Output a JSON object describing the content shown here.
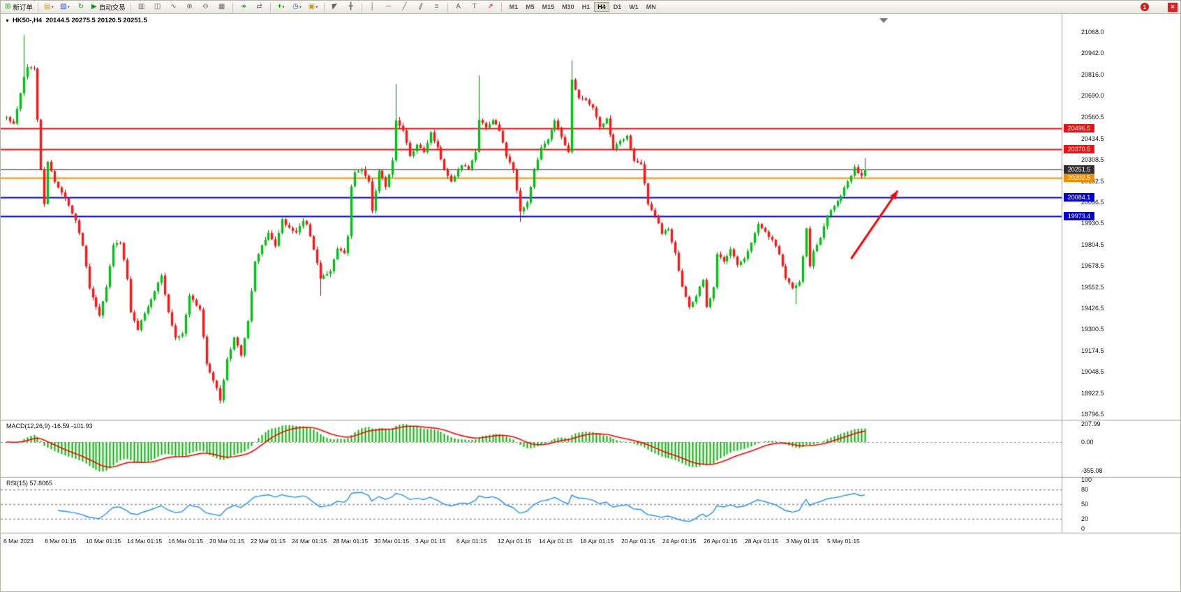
{
  "window": {
    "notification_count": "1",
    "close_glyph": "×"
  },
  "toolbar": {
    "new_order_label": "新订单",
    "auto_trading_label": "自动交易",
    "timeframes": [
      "M1",
      "M5",
      "M15",
      "M30",
      "H1",
      "H4",
      "D1",
      "W1",
      "MN"
    ],
    "active_timeframe": "H4"
  },
  "icons": {
    "new_order": "⊞",
    "terminal": "▤",
    "navigator": "▧",
    "refresh": "↻",
    "play": "▶",
    "chart_bars": "▥",
    "chart_candles": "◫",
    "chart_line": "∿",
    "zoom_in": "⊕",
    "zoom_out": "⊖",
    "tile_windows": "▦",
    "auto_scroll": "↠",
    "chart_shift": "⇄",
    "indicators": "+",
    "periods": "◷",
    "templates": "▣",
    "cursor": "◤",
    "crosshair": "╋",
    "vertical_line": "│",
    "horizontal_line": "─",
    "trendline": "╱",
    "channel": "∥",
    "fibonacci": "≡",
    "text": "A",
    "text_label": "T",
    "arrows_tool": "↗",
    "dropdown": "▾",
    "collapse": "▼"
  },
  "chart": {
    "symbol_period": "HK50-,H4",
    "ohlc": "20144.5 20275.5 20120.5 20251.5"
  },
  "indicators": {
    "macd_label": "MACD(12,26,9) -16.59 -101.93",
    "rsi_label": "RSI(15) 57.8065"
  },
  "chart_data": {
    "type": "candlestick",
    "symbol": "HK50-",
    "period": "H4",
    "open": "20144.5",
    "high": "20275.5",
    "low": "20120.5",
    "close": "20251.5",
    "candle_count": 250,
    "close_path_anchors": [
      [
        0,
        20560
      ],
      [
        2,
        20520
      ],
      [
        4,
        20700
      ],
      [
        5,
        20800
      ],
      [
        6,
        20860
      ],
      [
        8,
        20850
      ],
      [
        9,
        20550
      ],
      [
        10,
        20250
      ],
      [
        11,
        20050
      ],
      [
        12,
        20300
      ],
      [
        14,
        20180
      ],
      [
        17,
        20080
      ],
      [
        20,
        19950
      ],
      [
        22,
        19800
      ],
      [
        24,
        19550
      ],
      [
        27,
        19380
      ],
      [
        29,
        19550
      ],
      [
        31,
        19800
      ],
      [
        33,
        19820
      ],
      [
        35,
        19600
      ],
      [
        36,
        19400
      ],
      [
        38,
        19300
      ],
      [
        40,
        19400
      ],
      [
        42,
        19480
      ],
      [
        45,
        19620
      ],
      [
        47,
        19400
      ],
      [
        49,
        19250
      ],
      [
        51,
        19280
      ],
      [
        53,
        19500
      ],
      [
        56,
        19420
      ],
      [
        58,
        19100
      ],
      [
        61,
        18950
      ],
      [
        62,
        18880
      ],
      [
        64,
        19120
      ],
      [
        66,
        19250
      ],
      [
        68,
        19150
      ],
      [
        70,
        19350
      ],
      [
        72,
        19700
      ],
      [
        74,
        19800
      ],
      [
        76,
        19870
      ],
      [
        78,
        19800
      ],
      [
        80,
        19950
      ],
      [
        82,
        19900
      ],
      [
        84,
        19870
      ],
      [
        86,
        19950
      ],
      [
        87,
        19920
      ],
      [
        89,
        19780
      ],
      [
        91,
        19600
      ],
      [
        94,
        19650
      ],
      [
        96,
        19780
      ],
      [
        98,
        19750
      ],
      [
        99,
        19850
      ],
      [
        100,
        20150
      ],
      [
        101,
        20230
      ],
      [
        103,
        20250
      ],
      [
        105,
        20180
      ],
      [
        106,
        20000
      ],
      [
        108,
        20250
      ],
      [
        110,
        20150
      ],
      [
        112,
        20300
      ],
      [
        113,
        20540
      ],
      [
        115,
        20480
      ],
      [
        117,
        20330
      ],
      [
        119,
        20400
      ],
      [
        121,
        20350
      ],
      [
        123,
        20470
      ],
      [
        125,
        20380
      ],
      [
        127,
        20250
      ],
      [
        129,
        20180
      ],
      [
        132,
        20280
      ],
      [
        134,
        20260
      ],
      [
        136,
        20350
      ],
      [
        137,
        20550
      ],
      [
        139,
        20500
      ],
      [
        141,
        20550
      ],
      [
        143,
        20480
      ],
      [
        145,
        20330
      ],
      [
        147,
        20250
      ],
      [
        149,
        20000
      ],
      [
        151,
        20050
      ],
      [
        153,
        20250
      ],
      [
        155,
        20380
      ],
      [
        157,
        20430
      ],
      [
        159,
        20540
      ],
      [
        161,
        20450
      ],
      [
        163,
        20350
      ],
      [
        164,
        20780
      ],
      [
        166,
        20680
      ],
      [
        168,
        20660
      ],
      [
        170,
        20620
      ],
      [
        172,
        20500
      ],
      [
        174,
        20550
      ],
      [
        176,
        20370
      ],
      [
        178,
        20420
      ],
      [
        180,
        20450
      ],
      [
        182,
        20300
      ],
      [
        184,
        20280
      ],
      [
        186,
        20050
      ],
      [
        188,
        19980
      ],
      [
        190,
        19870
      ],
      [
        192,
        19900
      ],
      [
        194,
        19750
      ],
      [
        196,
        19550
      ],
      [
        198,
        19430
      ],
      [
        200,
        19500
      ],
      [
        202,
        19600
      ],
      [
        203,
        19430
      ],
      [
        205,
        19550
      ],
      [
        206,
        19750
      ],
      [
        208,
        19700
      ],
      [
        210,
        19780
      ],
      [
        212,
        19680
      ],
      [
        214,
        19720
      ],
      [
        216,
        19820
      ],
      [
        218,
        19930
      ],
      [
        220,
        19880
      ],
      [
        222,
        19830
      ],
      [
        224,
        19750
      ],
      [
        226,
        19600
      ],
      [
        228,
        19550
      ],
      [
        230,
        19580
      ],
      [
        232,
        19900
      ],
      [
        233,
        19680
      ],
      [
        234,
        19760
      ],
      [
        236,
        19850
      ],
      [
        238,
        19980
      ],
      [
        240,
        20040
      ],
      [
        242,
        20100
      ],
      [
        244,
        20180
      ],
      [
        246,
        20260
      ],
      [
        248,
        20210
      ],
      [
        249,
        20251.5
      ]
    ],
    "wick_overrides": {
      "5": {
        "high": 21050
      },
      "62": {
        "low": 18860
      },
      "91": {
        "low": 19500
      },
      "113": {
        "high": 20760
      },
      "137": {
        "high": 20810
      },
      "149": {
        "low": 19940
      },
      "164": {
        "high": 20900
      },
      "229": {
        "low": 19450
      },
      "249": {
        "high": 20320
      }
    },
    "levels": [
      {
        "price": 20496.5,
        "label": "20496.5",
        "color": "#ee1111",
        "width": 2
      },
      {
        "price": 20370.5,
        "label": "20370.5",
        "color": "#ee1111",
        "width": 2
      },
      {
        "price": 20251.5,
        "label": "20251.5",
        "color": "#2f2f2f",
        "width": 1
      },
      {
        "price": 20202.5,
        "label": "20202.5",
        "color": "#ef8e00",
        "width": 2
      },
      {
        "price": 20084.1,
        "label": "20084.1",
        "color": "#0000cc",
        "width": 2
      },
      {
        "price": 19973.4,
        "label": "19973.4",
        "color": "#0000cc",
        "width": 2
      }
    ],
    "price_axis_labels": [
      "21068.0",
      "20942.0",
      "20816.0",
      "20690.0",
      "20560.5",
      "20434.5",
      "20308.5",
      "20182.5",
      "20056.5",
      "19930.5",
      "19804.5",
      "19678.5",
      "19552.5",
      "19426.5",
      "19300.5",
      "19174.5",
      "19048.5",
      "18922.5",
      "18796.5"
    ],
    "time_axis_labels": [
      "6 Mar 2023",
      "8 Mar 01:15",
      "10 Mar 01:15",
      "14 Mar 01:15",
      "16 Mar 01:15",
      "20 Mar 01:15",
      "22 Mar 01:15",
      "24 Mar 01:15",
      "28 Mar 01:15",
      "30 Mar 01:15",
      "3 Apr 01:15",
      "6 Apr 01:15",
      "12 Apr 01:15",
      "14 Apr 01:15",
      "18 Apr 01:15",
      "20 Apr 01:15",
      "24 Apr 01:15",
      "26 Apr 01:15",
      "28 Apr 01:15",
      "3 May 01:15",
      "5 May 01:15"
    ],
    "macd": {
      "params": "12,26,9",
      "value": "-16.59",
      "signal_value": "-101.93",
      "axis": [
        "207.99",
        "0.00",
        "-355.08"
      ],
      "histogram_color": "#00b400",
      "signal_color": "#ff0000"
    },
    "rsi": {
      "period": 15,
      "value": "57.8065",
      "axis": [
        "100",
        "80",
        "50",
        "20",
        "0"
      ],
      "levels": [
        80,
        50,
        20
      ],
      "line_color": "#1e90ff"
    },
    "arrow": {
      "from_index": 245,
      "from_price": 19720,
      "to_index": 258.5,
      "to_price": 20125,
      "color": "#ff0000",
      "width": 3
    },
    "colors": {
      "up": "#00c214",
      "up_border": "#067d00",
      "down": "#ff1414",
      "down_border": "#b30000",
      "background": "#ffffff"
    }
  }
}
